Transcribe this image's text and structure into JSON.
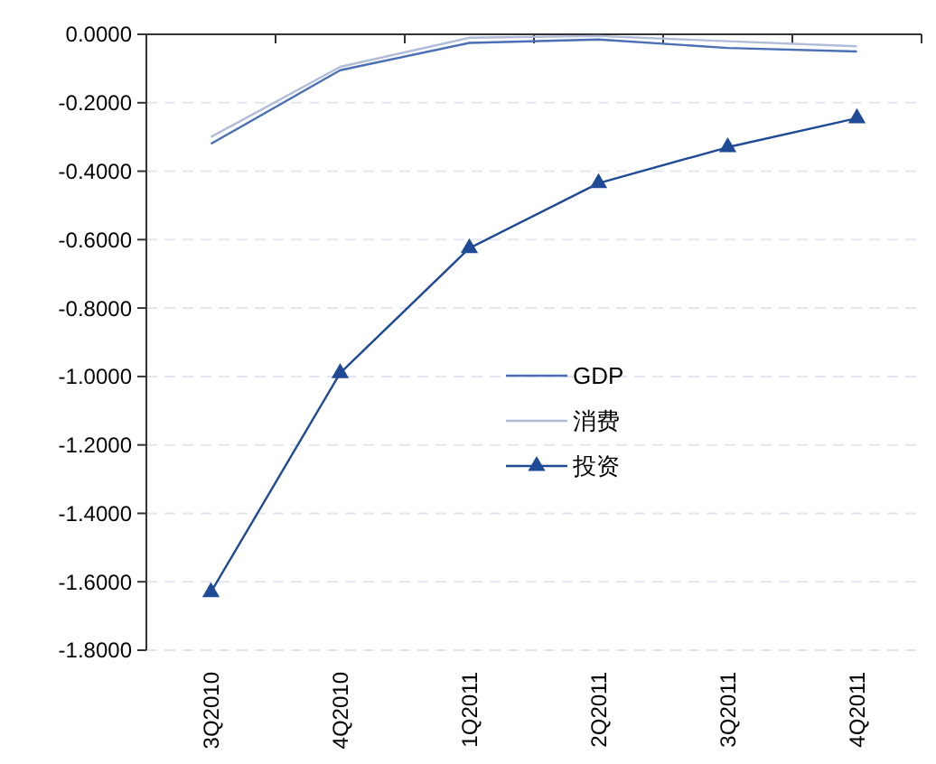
{
  "chart_data": {
    "type": "line",
    "categories": [
      "3Q2010",
      "4Q2010",
      "1Q2011",
      "2Q2011",
      "3Q2011",
      "4Q2011"
    ],
    "series": [
      {
        "name": "GDP",
        "color": "#4a6fb5",
        "values": [
          -0.32,
          -0.105,
          -0.025,
          -0.015,
          -0.04,
          -0.05
        ],
        "marker": "none"
      },
      {
        "name": "消费",
        "color": "#b0bcd8",
        "values": [
          -0.3,
          -0.095,
          -0.01,
          -0.005,
          -0.02,
          -0.035
        ],
        "marker": "none"
      },
      {
        "name": "投资",
        "color": "#1f4a96",
        "values": [
          -1.63,
          -0.99,
          -0.625,
          -0.435,
          -0.33,
          -0.245
        ],
        "marker": "triangle"
      }
    ],
    "ylim": [
      -1.8,
      0
    ],
    "yticks": [
      {
        "value": 0,
        "label": "0.0000"
      },
      {
        "value": -0.2,
        "label": "-0.2000"
      },
      {
        "value": -0.4,
        "label": "-0.4000"
      },
      {
        "value": -0.6,
        "label": "-0.6000"
      },
      {
        "value": -0.8,
        "label": "-0.8000"
      },
      {
        "value": -1,
        "label": "-1.0000"
      },
      {
        "value": -1.2,
        "label": "-1.2000"
      },
      {
        "value": -1.4,
        "label": "-1.4000"
      },
      {
        "value": -1.6,
        "label": "-1.6000"
      },
      {
        "value": -1.8,
        "label": "-1.8000"
      }
    ],
    "grid": "y",
    "legend": "center",
    "line_style": "solid"
  }
}
